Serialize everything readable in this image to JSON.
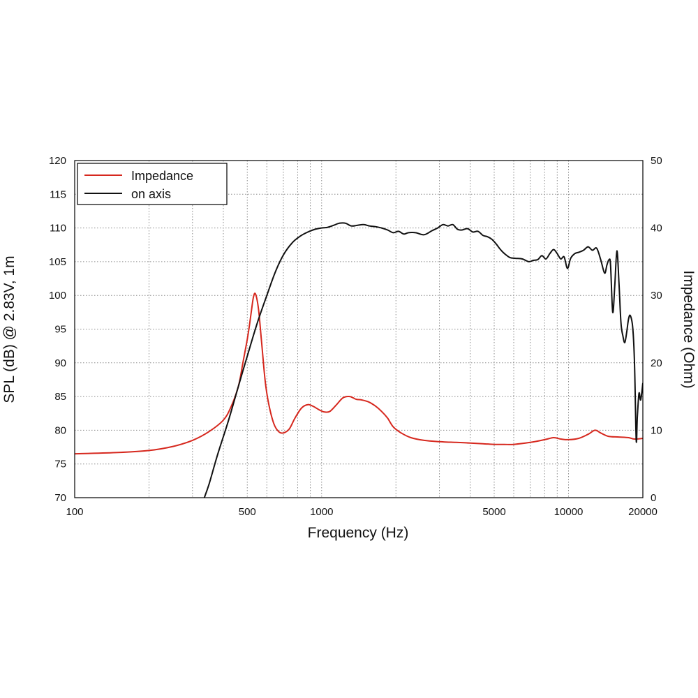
{
  "chart_data": {
    "type": "line",
    "xlabel": "Frequency (Hz)",
    "ylabel_left": "SPL (dB) @ 2.83V, 1m",
    "ylabel_right": "Impedance (Ohm)",
    "x_scale": "log",
    "xlim": [
      100,
      20000
    ],
    "ylim_left": [
      70,
      120
    ],
    "ylim_right": [
      0,
      50
    ],
    "x_tick_labels": [
      "100",
      "500",
      "1000",
      "5000",
      "10000",
      "20000"
    ],
    "x_ticks": [
      100,
      500,
      1000,
      5000,
      10000,
      20000
    ],
    "x_grid": [
      200,
      300,
      400,
      500,
      600,
      700,
      800,
      900,
      1000,
      2000,
      3000,
      4000,
      5000,
      6000,
      7000,
      8000,
      9000,
      10000
    ],
    "y_left_ticks": [
      70,
      75,
      80,
      85,
      90,
      95,
      100,
      105,
      110,
      115,
      120
    ],
    "y_right_ticks": [
      0,
      10,
      20,
      30,
      40,
      50
    ],
    "grid": true,
    "legend_position": "top-left",
    "series": [
      {
        "name": "Impedance",
        "axis": "right",
        "color": "#d6281e",
        "x": [
          100,
          150,
          200,
          250,
          300,
          350,
          400,
          430,
          460,
          480,
          500,
          510,
          520,
          530,
          540,
          555,
          570,
          590,
          610,
          640,
          670,
          700,
          740,
          780,
          830,
          880,
          930,
          980,
          1030,
          1080,
          1150,
          1220,
          1300,
          1380,
          1450,
          1550,
          1650,
          1750,
          1850,
          1950,
          2100,
          2300,
          2600,
          3000,
          3500,
          4000,
          4500,
          5000,
          5500,
          6000,
          7000,
          8000,
          8700,
          9300,
          10000,
          11000,
          12000,
          12800,
          13500,
          14500,
          16000,
          17500,
          18500,
          20000
        ],
        "y": [
          6.5,
          6.7,
          7.0,
          7.6,
          8.5,
          9.8,
          11.5,
          13.5,
          16.5,
          20.0,
          23.5,
          25.5,
          27.8,
          29.8,
          30.2,
          28.0,
          23.5,
          17.5,
          14.0,
          11.0,
          9.8,
          9.6,
          10.2,
          11.8,
          13.3,
          13.8,
          13.5,
          13.0,
          12.7,
          12.8,
          13.8,
          14.8,
          15.0,
          14.6,
          14.5,
          14.2,
          13.6,
          12.8,
          11.8,
          10.5,
          9.6,
          8.9,
          8.5,
          8.3,
          8.2,
          8.1,
          8.0,
          7.9,
          7.9,
          7.9,
          8.2,
          8.6,
          8.9,
          8.7,
          8.6,
          8.8,
          9.4,
          10.0,
          9.6,
          9.1,
          9.0,
          8.9,
          8.7,
          8.8
        ]
      },
      {
        "name": "on axis",
        "axis": "left",
        "color": "#111111",
        "x": [
          335,
          350,
          380,
          420,
          460,
          500,
          550,
          600,
          650,
          700,
          760,
          820,
          880,
          940,
          1000,
          1060,
          1120,
          1180,
          1250,
          1320,
          1400,
          1480,
          1560,
          1650,
          1750,
          1850,
          1950,
          2050,
          2150,
          2250,
          2400,
          2600,
          2800,
          2950,
          3100,
          3250,
          3400,
          3550,
          3700,
          3900,
          4100,
          4300,
          4500,
          4700,
          4900,
          5100,
          5300,
          5500,
          5800,
          6100,
          6500,
          6900,
          7200,
          7500,
          7800,
          8100,
          8400,
          8700,
          9000,
          9300,
          9600,
          9900,
          10200,
          10600,
          11000,
          11500,
          12000,
          12500,
          13000,
          13500,
          14000,
          14300,
          14600,
          14800,
          15100,
          15400,
          15700,
          16000,
          16300,
          16600,
          16900,
          17200,
          17500,
          17800,
          18200,
          18500,
          18800,
          19000,
          19300,
          19600,
          20000
        ],
        "y": [
          70.0,
          72.0,
          76.5,
          81.5,
          86.5,
          91.0,
          96.0,
          100.0,
          103.5,
          106.0,
          107.8,
          108.8,
          109.4,
          109.8,
          110.0,
          110.1,
          110.4,
          110.7,
          110.7,
          110.3,
          110.4,
          110.5,
          110.3,
          110.2,
          110.0,
          109.7,
          109.3,
          109.5,
          109.1,
          109.3,
          109.3,
          109.0,
          109.6,
          110.0,
          110.5,
          110.3,
          110.5,
          109.8,
          109.7,
          109.9,
          109.4,
          109.5,
          108.9,
          108.7,
          108.3,
          107.6,
          106.8,
          106.2,
          105.6,
          105.5,
          105.4,
          105.0,
          105.2,
          105.3,
          105.9,
          105.4,
          106.2,
          106.8,
          106.2,
          105.4,
          105.7,
          104.0,
          105.5,
          106.2,
          106.4,
          106.7,
          107.2,
          106.7,
          107.0,
          105.3,
          103.3,
          104.5,
          105.3,
          104.5,
          97.5,
          101.5,
          106.6,
          102.0,
          96.0,
          94.0,
          93.0,
          94.5,
          96.5,
          97.0,
          95.2,
          90.0,
          78.5,
          82.0,
          85.5,
          84.5,
          87.0
        ]
      }
    ]
  }
}
